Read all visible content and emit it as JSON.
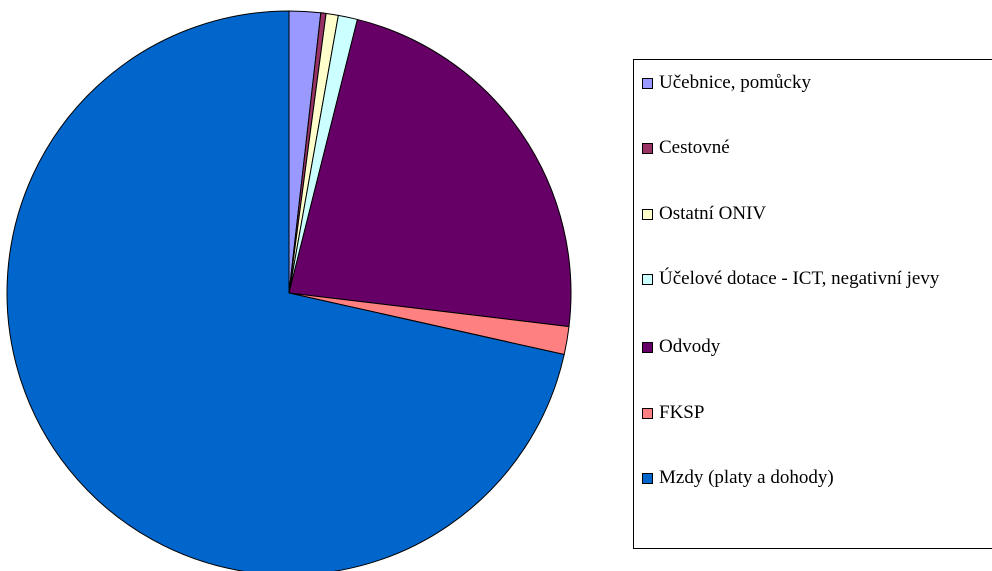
{
  "chart_data": {
    "type": "pie",
    "start_angle_deg": 0,
    "direction": "clockwise",
    "slices": [
      {
        "label": "Učebnice, pomůcky",
        "value": 1.8,
        "color": "#9999FF"
      },
      {
        "label": "Cestovné",
        "value": 0.3,
        "color": "#993366"
      },
      {
        "label": "Ostatní ONIV",
        "value": 0.7,
        "color": "#FFFFCC"
      },
      {
        "label": "Účelové dotace - ICT, negativní jevy",
        "value": 1.1,
        "color": "#CCFFFF"
      },
      {
        "label": "Odvody",
        "value": 23.0,
        "color": "#660066"
      },
      {
        "label": "FKSP",
        "value": 1.6,
        "color": "#FF8080"
      },
      {
        "label": "Mzdy (platy a dohody)",
        "value": 71.5,
        "color": "#0066CC"
      }
    ],
    "legend_placement": "right"
  }
}
